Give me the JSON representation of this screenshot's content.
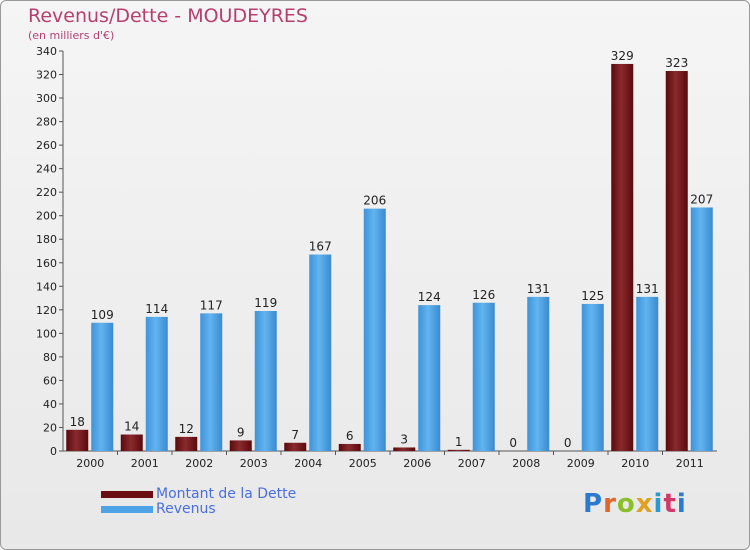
{
  "header": {
    "title": "Revenus/Dette - MOUDEYRES",
    "subtitle": "(en milliers d'€)"
  },
  "legend": [
    {
      "label": "Montant de la Dette",
      "color": "#6b0f12"
    },
    {
      "label": "Revenus",
      "color": "#4ea3e6"
    }
  ],
  "logo": {
    "text": "Proxiti"
  },
  "chart_data": {
    "type": "bar",
    "title": "Revenus/Dette - MOUDEYRES",
    "ylabel": "(en milliers d'€)",
    "categories": [
      "2000",
      "2001",
      "2002",
      "2003",
      "2004",
      "2005",
      "2006",
      "2007",
      "2008",
      "2009",
      "2010",
      "2011"
    ],
    "series": [
      {
        "name": "Montant de la Dette",
        "color": "#6b0f12",
        "values": [
          18,
          14,
          12,
          9,
          7,
          6,
          3,
          1,
          0,
          0,
          329,
          323
        ]
      },
      {
        "name": "Revenus",
        "color": "#4ea3e6",
        "values": [
          109,
          114,
          117,
          119,
          167,
          206,
          124,
          126,
          131,
          125,
          131,
          207
        ]
      }
    ],
    "ylim": [
      0,
      340
    ],
    "yticks": [
      0,
      20,
      40,
      60,
      80,
      100,
      120,
      140,
      160,
      180,
      200,
      220,
      240,
      260,
      280,
      300,
      320,
      340
    ],
    "grid": false,
    "legend_position": "bottom-left"
  }
}
